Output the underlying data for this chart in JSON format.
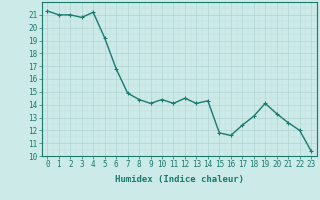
{
  "x": [
    0,
    1,
    2,
    3,
    4,
    5,
    6,
    7,
    8,
    9,
    10,
    11,
    12,
    13,
    14,
    15,
    16,
    17,
    18,
    19,
    20,
    21,
    22,
    23
  ],
  "y": [
    21.3,
    21.0,
    21.0,
    20.8,
    21.2,
    19.2,
    16.8,
    14.9,
    14.4,
    14.1,
    14.4,
    14.1,
    14.5,
    14.1,
    14.3,
    11.8,
    11.6,
    12.4,
    13.1,
    14.1,
    13.3,
    12.6,
    12.0,
    10.4
  ],
  "title": "",
  "xlabel": "Humidex (Indice chaleur)",
  "ylabel": "",
  "xlim": [
    -0.5,
    23.5
  ],
  "ylim": [
    10,
    22
  ],
  "yticks": [
    10,
    11,
    12,
    13,
    14,
    15,
    16,
    17,
    18,
    19,
    20,
    21
  ],
  "xticks": [
    0,
    1,
    2,
    3,
    4,
    5,
    6,
    7,
    8,
    9,
    10,
    11,
    12,
    13,
    14,
    15,
    16,
    17,
    18,
    19,
    20,
    21,
    22,
    23
  ],
  "line_color": "#1a7a6e",
  "marker": "+",
  "bg_color": "#cceae8",
  "grid_major_color": "#b0d4d2",
  "grid_minor_color": "#c0dedd",
  "tick_color": "#1a7a6e",
  "label_color": "#1a7a6e",
  "xlabel_fontsize": 6.5,
  "tick_fontsize": 5.5,
  "linewidth": 1.0,
  "markersize": 3,
  "markeredgewidth": 0.8
}
